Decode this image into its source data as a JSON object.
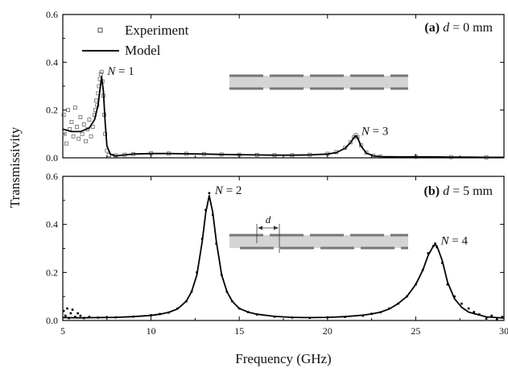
{
  "chart_data": [
    {
      "type": "line",
      "panel_label": "(a)",
      "panel_var": "d",
      "panel_value": " = 0 mm",
      "xlabel": "Frequency (GHz)",
      "ylabel": "Transmissivity",
      "xlim": [
        5,
        30
      ],
      "ylim": [
        0,
        0.6
      ],
      "x_ticks": [
        "5",
        "10",
        "15",
        "20",
        "25",
        "30"
      ],
      "y_ticks": [
        "0.0",
        "0.2",
        "0.4",
        "0.6"
      ],
      "legend": {
        "placement": "top-left",
        "entries": [
          "Experiment",
          "Model"
        ]
      },
      "annotations": [
        {
          "var": "N",
          "text": " = 1",
          "x": 7.2,
          "y": 0.34
        },
        {
          "var": "N",
          "text": " = 3",
          "x": 21.6,
          "y": 0.09
        }
      ],
      "series": [
        {
          "name": "Model",
          "style": "line",
          "x": [
            5.0,
            5.5,
            6.0,
            6.5,
            6.8,
            7.0,
            7.1,
            7.2,
            7.3,
            7.4,
            7.5,
            7.7,
            8.0,
            8.5,
            9.0,
            10,
            11,
            12,
            13,
            14,
            15,
            16,
            17,
            18,
            19,
            20,
            20.5,
            21.0,
            21.3,
            21.5,
            21.6,
            21.7,
            21.9,
            22.2,
            22.6,
            23,
            24,
            25,
            26,
            27,
            28,
            29,
            30
          ],
          "y": [
            0.12,
            0.11,
            0.11,
            0.125,
            0.16,
            0.22,
            0.28,
            0.34,
            0.28,
            0.15,
            0.05,
            0.015,
            0.008,
            0.012,
            0.016,
            0.018,
            0.018,
            0.017,
            0.016,
            0.014,
            0.013,
            0.012,
            0.011,
            0.011,
            0.012,
            0.016,
            0.022,
            0.04,
            0.063,
            0.085,
            0.092,
            0.085,
            0.05,
            0.02,
            0.008,
            0.005,
            0.004,
            0.004,
            0.004,
            0.003,
            0.003,
            0.002,
            0.002
          ]
        },
        {
          "name": "Experiment",
          "style": "open-square",
          "x": [
            5.05,
            5.1,
            5.2,
            5.3,
            5.4,
            5.5,
            5.6,
            5.7,
            5.8,
            5.9,
            6.0,
            6.1,
            6.2,
            6.3,
            6.4,
            6.5,
            6.6,
            6.7,
            6.8,
            6.85,
            6.9,
            6.95,
            7.0,
            7.05,
            7.1,
            7.15,
            7.2,
            7.25,
            7.3,
            7.35,
            7.4,
            7.5,
            7.6,
            7.8,
            8.0,
            8.5,
            9.0,
            10,
            11,
            12,
            13,
            14,
            15,
            16,
            17,
            18,
            19,
            20,
            20.5,
            21.0,
            21.3,
            21.5,
            21.6,
            21.7,
            21.9,
            22.2,
            22.6,
            23,
            25,
            27,
            29
          ],
          "y": [
            0.18,
            0.1,
            0.06,
            0.2,
            0.12,
            0.15,
            0.09,
            0.21,
            0.13,
            0.08,
            0.17,
            0.1,
            0.14,
            0.07,
            0.12,
            0.16,
            0.09,
            0.13,
            0.18,
            0.2,
            0.24,
            0.22,
            0.27,
            0.3,
            0.33,
            0.35,
            0.36,
            0.32,
            0.26,
            0.18,
            0.1,
            0.03,
            0.012,
            0.008,
            0.01,
            0.013,
            0.016,
            0.019,
            0.018,
            0.017,
            0.016,
            0.014,
            0.013,
            0.012,
            0.011,
            0.011,
            0.013,
            0.017,
            0.024,
            0.042,
            0.065,
            0.087,
            0.095,
            0.087,
            0.052,
            0.022,
            0.009,
            0.005,
            0.004,
            0.003,
            0.002
          ]
        }
      ]
    },
    {
      "type": "line",
      "panel_label": "(b)",
      "panel_var": "d",
      "panel_value": " = 5 mm",
      "inset_var": "d",
      "xlabel": "Frequency (GHz)",
      "ylabel": "Transmissivity",
      "xlim": [
        5,
        30
      ],
      "ylim": [
        0,
        0.6
      ],
      "x_ticks": [
        "5",
        "10",
        "15",
        "20",
        "25",
        "30"
      ],
      "y_ticks": [
        "0.0",
        "0.2",
        "0.4",
        "0.6"
      ],
      "annotations": [
        {
          "var": "N",
          "text": " = 2",
          "x": 13.3,
          "y": 0.52
        },
        {
          "var": "N",
          "text": " = 4",
          "x": 26.1,
          "y": 0.31
        }
      ],
      "series": [
        {
          "name": "Model",
          "style": "line",
          "x": [
            5,
            6,
            7,
            8,
            9,
            10,
            10.5,
            11,
            11.5,
            12,
            12.3,
            12.6,
            12.9,
            13.1,
            13.3,
            13.5,
            13.7,
            14.0,
            14.3,
            14.6,
            15,
            15.5,
            16,
            17,
            18,
            19,
            20,
            21,
            22,
            22.5,
            23,
            23.5,
            24,
            24.5,
            25,
            25.4,
            25.7,
            26.0,
            26.1,
            26.2,
            26.5,
            26.8,
            27.2,
            27.6,
            28,
            29,
            30
          ],
          "y": [
            0.012,
            0.011,
            0.012,
            0.013,
            0.016,
            0.021,
            0.026,
            0.034,
            0.048,
            0.08,
            0.12,
            0.19,
            0.33,
            0.45,
            0.52,
            0.45,
            0.33,
            0.19,
            0.12,
            0.08,
            0.05,
            0.035,
            0.026,
            0.017,
            0.013,
            0.012,
            0.013,
            0.016,
            0.022,
            0.027,
            0.035,
            0.048,
            0.07,
            0.1,
            0.15,
            0.21,
            0.27,
            0.31,
            0.315,
            0.31,
            0.25,
            0.16,
            0.09,
            0.055,
            0.035,
            0.015,
            0.01
          ]
        },
        {
          "name": "Experiment",
          "style": "dot",
          "x": [
            5.05,
            5.15,
            5.25,
            5.35,
            5.45,
            5.55,
            5.7,
            5.85,
            6.0,
            6.2,
            6.5,
            7,
            7.5,
            8,
            9,
            10,
            10.5,
            11,
            11.5,
            12,
            12.3,
            12.6,
            12.9,
            13.1,
            13.3,
            13.5,
            13.7,
            14.0,
            14.3,
            14.6,
            15,
            15.5,
            16,
            17,
            18,
            19,
            20,
            21,
            22,
            22.5,
            23,
            23.5,
            24,
            24.5,
            25,
            25.4,
            25.7,
            26.0,
            26.1,
            26.2,
            26.5,
            26.8,
            27.2,
            27.6,
            28,
            28.3,
            28.6,
            29,
            29.3,
            29.6,
            29.9
          ],
          "y": [
            0.04,
            0.02,
            0.05,
            0.01,
            0.03,
            0.045,
            0.015,
            0.03,
            0.02,
            0.01,
            0.015,
            0.012,
            0.014,
            0.013,
            0.016,
            0.022,
            0.027,
            0.033,
            0.05,
            0.08,
            0.12,
            0.2,
            0.34,
            0.46,
            0.53,
            0.44,
            0.32,
            0.19,
            0.12,
            0.08,
            0.05,
            0.035,
            0.025,
            0.016,
            0.012,
            0.011,
            0.013,
            0.015,
            0.02,
            0.028,
            0.034,
            0.05,
            0.07,
            0.1,
            0.15,
            0.21,
            0.28,
            0.31,
            0.32,
            0.305,
            0.24,
            0.15,
            0.1,
            0.07,
            0.05,
            0.035,
            0.025,
            0.008,
            0.02,
            0.005,
            0.015
          ]
        }
      ]
    }
  ]
}
